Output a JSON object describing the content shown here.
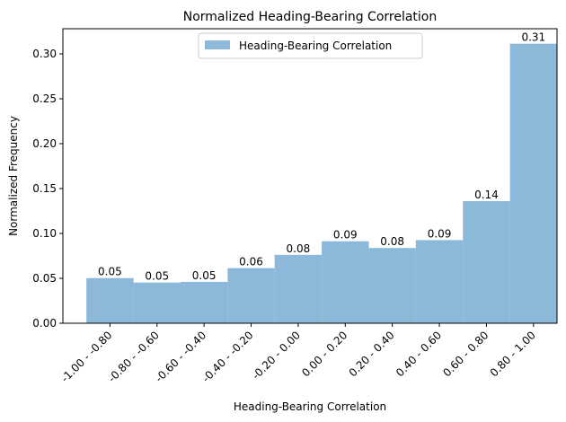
{
  "chart_data": {
    "type": "bar",
    "title": "Normalized Heading-Bearing Correlation",
    "xlabel": "Heading-Bearing Correlation",
    "ylabel": "Normalized Frequency",
    "categories": [
      "-1.00 - -0.80",
      "-0.80 - -0.60",
      "-0.60 - -0.40",
      "-0.40 - -0.20",
      "-0.20 - 0.00",
      "0.00 - 0.20",
      "0.20 - 0.40",
      "0.40 - 0.60",
      "0.60 - 0.80",
      "0.80 - 1.00"
    ],
    "series": [
      {
        "name": "Heading-Bearing Correlation",
        "values": [
          0.0503,
          0.0453,
          0.0461,
          0.0614,
          0.0762,
          0.0913,
          0.0838,
          0.0926,
          0.136,
          0.3113
        ],
        "data_labels": [
          "0.05",
          "0.05",
          "0.05",
          "0.06",
          "0.08",
          "0.09",
          "0.08",
          "0.09",
          "0.14",
          "0.31"
        ]
      }
    ],
    "ylim": [
      0,
      0.328
    ],
    "yticks": [
      0.0,
      0.05,
      0.1,
      0.15,
      0.2,
      0.25,
      0.3
    ],
    "ytick_labels": [
      "0.00",
      "0.05",
      "0.10",
      "0.15",
      "0.20",
      "0.25",
      "0.30"
    ],
    "grid": false,
    "legend_position": "top-center",
    "colors": {
      "bar": "#8cb8d9",
      "axis": "#000000"
    }
  }
}
